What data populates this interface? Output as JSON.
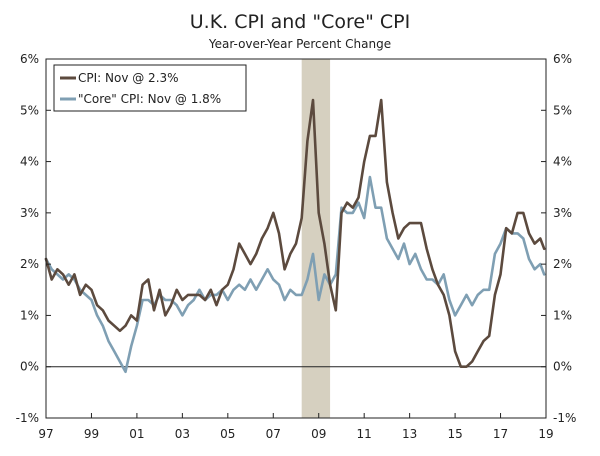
{
  "chart_data": {
    "type": "line",
    "title": "U.K. CPI and \"Core\" CPI",
    "subtitle": "Year-over-Year Percent Change",
    "xlabel": "",
    "ylabel": "",
    "xlim": [
      1997,
      2019
    ],
    "ylim": [
      -1,
      6
    ],
    "y_ticks": [
      "-1%",
      "0%",
      "1%",
      "2%",
      "3%",
      "4%",
      "5%",
      "6%"
    ],
    "y_tick_values": [
      -1,
      0,
      1,
      2,
      3,
      4,
      5,
      6
    ],
    "x_ticks": [
      "97",
      "99",
      "01",
      "03",
      "05",
      "07",
      "09",
      "11",
      "13",
      "15",
      "17",
      "19"
    ],
    "x_tick_values": [
      1997,
      1999,
      2001,
      2003,
      2005,
      2007,
      2009,
      2011,
      2013,
      2015,
      2017,
      2019
    ],
    "grid": "horizontal",
    "legend_position": "top-left",
    "shaded_region": {
      "start": 2008.25,
      "end": 2009.5,
      "color": "#d6d0c0"
    },
    "series": [
      {
        "name": "CPI: Nov @ 2.3%",
        "color": "#5c4a3e",
        "x": [
          1997.0,
          1997.25,
          1997.5,
          1997.75,
          1998.0,
          1998.25,
          1998.5,
          1998.75,
          1999.0,
          1999.25,
          1999.5,
          1999.75,
          2000.0,
          2000.25,
          2000.5,
          2000.75,
          2001.0,
          2001.25,
          2001.5,
          2001.75,
          2002.0,
          2002.25,
          2002.5,
          2002.75,
          2003.0,
          2003.25,
          2003.5,
          2003.75,
          2004.0,
          2004.25,
          2004.5,
          2004.75,
          2005.0,
          2005.25,
          2005.5,
          2005.75,
          2006.0,
          2006.25,
          2006.5,
          2006.75,
          2007.0,
          2007.25,
          2007.5,
          2007.75,
          2008.0,
          2008.25,
          2008.5,
          2008.75,
          2009.0,
          2009.25,
          2009.5,
          2009.75,
          2010.0,
          2010.25,
          2010.5,
          2010.75,
          2011.0,
          2011.25,
          2011.5,
          2011.75,
          2012.0,
          2012.25,
          2012.5,
          2012.75,
          2013.0,
          2013.25,
          2013.5,
          2013.75,
          2014.0,
          2014.25,
          2014.5,
          2014.75,
          2015.0,
          2015.25,
          2015.5,
          2015.75,
          2016.0,
          2016.25,
          2016.5,
          2016.75,
          2017.0,
          2017.25,
          2017.5,
          2017.75,
          2018.0,
          2018.25,
          2018.5,
          2018.75,
          2018.92
        ],
        "values": [
          2.1,
          1.7,
          1.9,
          1.8,
          1.6,
          1.8,
          1.4,
          1.6,
          1.5,
          1.2,
          1.1,
          0.9,
          0.8,
          0.7,
          0.8,
          1.0,
          0.9,
          1.6,
          1.7,
          1.1,
          1.5,
          1.0,
          1.2,
          1.5,
          1.3,
          1.4,
          1.4,
          1.4,
          1.3,
          1.5,
          1.2,
          1.5,
          1.6,
          1.9,
          2.4,
          2.2,
          2.0,
          2.2,
          2.5,
          2.7,
          3.0,
          2.6,
          1.9,
          2.2,
          2.4,
          2.9,
          4.4,
          5.2,
          3.0,
          2.4,
          1.6,
          1.1,
          3.0,
          3.2,
          3.1,
          3.3,
          4.0,
          4.5,
          4.5,
          5.2,
          3.6,
          3.0,
          2.5,
          2.7,
          2.8,
          2.8,
          2.8,
          2.3,
          1.9,
          1.6,
          1.4,
          1.0,
          0.3,
          0.0,
          0.0,
          0.1,
          0.3,
          0.5,
          0.6,
          1.4,
          1.8,
          2.7,
          2.6,
          3.0,
          3.0,
          2.6,
          2.4,
          2.5,
          2.3
        ]
      },
      {
        "name": "\"Core\" CPI: Nov @ 1.8%",
        "color": "#7f9fb3",
        "x": [
          1997.0,
          1997.25,
          1997.5,
          1997.75,
          1998.0,
          1998.25,
          1998.5,
          1998.75,
          1999.0,
          1999.25,
          1999.5,
          1999.75,
          2000.0,
          2000.25,
          2000.5,
          2000.75,
          2001.0,
          2001.25,
          2001.5,
          2001.75,
          2002.0,
          2002.25,
          2002.5,
          2002.75,
          2003.0,
          2003.25,
          2003.5,
          2003.75,
          2004.0,
          2004.25,
          2004.5,
          2004.75,
          2005.0,
          2005.25,
          2005.5,
          2005.75,
          2006.0,
          2006.25,
          2006.5,
          2006.75,
          2007.0,
          2007.25,
          2007.5,
          2007.75,
          2008.0,
          2008.25,
          2008.5,
          2008.75,
          2009.0,
          2009.25,
          2009.5,
          2009.75,
          2010.0,
          2010.25,
          2010.5,
          2010.75,
          2011.0,
          2011.25,
          2011.5,
          2011.75,
          2012.0,
          2012.25,
          2012.5,
          2012.75,
          2013.0,
          2013.25,
          2013.5,
          2013.75,
          2014.0,
          2014.25,
          2014.5,
          2014.75,
          2015.0,
          2015.25,
          2015.5,
          2015.75,
          2016.0,
          2016.25,
          2016.5,
          2016.75,
          2017.0,
          2017.25,
          2017.5,
          2017.75,
          2018.0,
          2018.25,
          2018.5,
          2018.75,
          2018.92
        ],
        "values": [
          2.1,
          1.9,
          1.8,
          1.7,
          1.8,
          1.7,
          1.5,
          1.4,
          1.3,
          1.0,
          0.8,
          0.5,
          0.3,
          0.1,
          -0.1,
          0.4,
          0.8,
          1.3,
          1.3,
          1.2,
          1.4,
          1.3,
          1.3,
          1.2,
          1.0,
          1.2,
          1.3,
          1.5,
          1.3,
          1.4,
          1.4,
          1.5,
          1.3,
          1.5,
          1.6,
          1.5,
          1.7,
          1.5,
          1.7,
          1.9,
          1.7,
          1.6,
          1.3,
          1.5,
          1.4,
          1.4,
          1.7,
          2.2,
          1.3,
          1.8,
          1.6,
          1.8,
          3.1,
          3.0,
          3.0,
          3.2,
          2.9,
          3.7,
          3.1,
          3.1,
          2.5,
          2.3,
          2.1,
          2.4,
          2.0,
          2.2,
          1.9,
          1.7,
          1.7,
          1.6,
          1.8,
          1.3,
          1.0,
          1.2,
          1.4,
          1.2,
          1.4,
          1.5,
          1.5,
          2.2,
          2.4,
          2.7,
          2.6,
          2.6,
          2.5,
          2.1,
          1.9,
          2.0,
          1.8
        ]
      }
    ]
  }
}
